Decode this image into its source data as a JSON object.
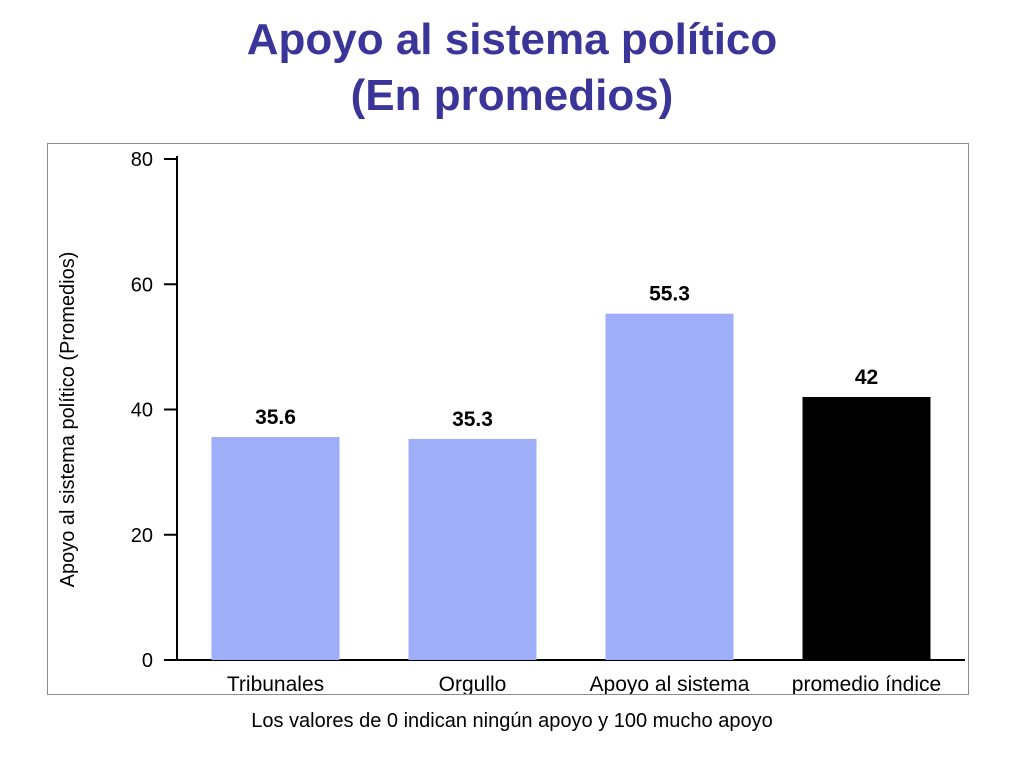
{
  "title_line1": "Apoyo al sistema político",
  "title_line2": "(En promedios)",
  "footnote": "Los valores de 0 indican ningún apoyo y 100 mucho apoyo",
  "colors": {
    "title": "#3b3499",
    "bar_default": "#9eaef9",
    "bar_highlight": "#000000",
    "axis": "#000000"
  },
  "chart_data": {
    "type": "bar",
    "title": "",
    "xlabel": "",
    "ylabel": "Apoyo al sistema político (Promedios)",
    "ylim": [
      0,
      80
    ],
    "yticks": [
      0,
      20,
      40,
      60,
      80
    ],
    "grid": false,
    "legend": "none",
    "categories": [
      "Tribunales",
      "Orgullo",
      "Apoyo al sistema",
      "promedio índice"
    ],
    "values": [
      35.6,
      35.3,
      55.3,
      42
    ],
    "value_labels": [
      "35.6",
      "35.3",
      "55.3",
      "42"
    ],
    "bar_colors": [
      "#9eaef9",
      "#9eaef9",
      "#9eaef9",
      "#000000"
    ]
  }
}
